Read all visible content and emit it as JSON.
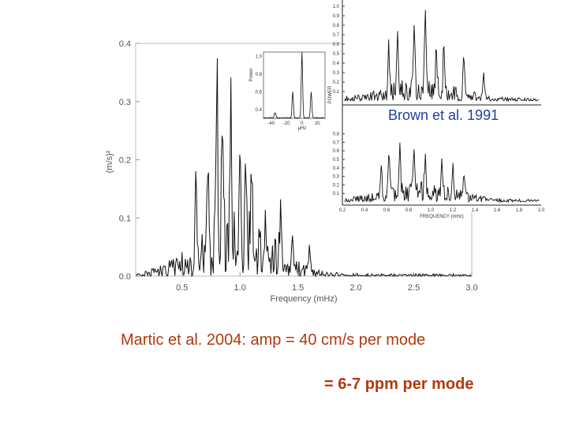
{
  "chart_data": [
    {
      "type": "line",
      "title": "",
      "xlabel": "Frequency (mHz)",
      "ylabel": "(m/s)²",
      "xlim": [
        0.1,
        3.0
      ],
      "ylim": [
        0.0,
        0.4
      ],
      "xticks": [
        "0.5",
        "1.0",
        "1.5",
        "2.0",
        "2.5",
        "3.0"
      ],
      "yticks": [
        "0.0",
        "0.1",
        "0.2",
        "0.3",
        "0.4"
      ],
      "peaks": {
        "x": [
          0.62,
          0.72,
          0.8,
          0.85,
          0.92,
          1.0,
          1.05,
          1.1,
          1.22,
          1.35,
          1.45,
          1.6
        ],
        "y": [
          0.14,
          0.24,
          0.38,
          0.3,
          0.24,
          0.2,
          0.16,
          0.17,
          0.11,
          0.09,
          0.06,
          0.05
        ]
      },
      "inset": {
        "ylabel": "Power",
        "xticks": [
          "-40",
          "-20",
          "0",
          "20"
        ],
        "yticks": [
          "0.4",
          "0.6",
          "0.8",
          "1.0"
        ],
        "xlabel": "μHz"
      }
    },
    {
      "type": "line",
      "label": "Brown et al. 1991",
      "xlabel": "FREQUENCY (mHz)",
      "ylabel": "POWER",
      "panels": [
        {
          "yticks": [
            "0.1",
            "0.2",
            "0.3",
            "0.4",
            "0.5",
            "0.6",
            "0.7",
            "0.8",
            "0.9",
            "1.0"
          ],
          "peaks": {
            "x": [
              0.62,
              0.7,
              0.85,
              0.95,
              1.05,
              1.12,
              1.3,
              1.48
            ],
            "y": [
              0.55,
              0.7,
              0.95,
              0.9,
              0.55,
              0.6,
              0.45,
              0.3
            ]
          }
        },
        {
          "yticks": [
            "0.1",
            "0.2",
            "0.3",
            "0.4",
            "0.5",
            "0.6",
            "0.7",
            "0.8"
          ],
          "xticks": [
            "0.2",
            "0.4",
            "0.6",
            "0.8",
            "1.0",
            "1.2",
            "1.4",
            "1.6",
            "1.8",
            "2.0"
          ],
          "peaks": {
            "x": [
              0.55,
              0.62,
              0.72,
              0.85,
              0.95,
              1.1,
              1.2,
              1.3
            ],
            "y": [
              0.45,
              0.65,
              0.7,
              0.6,
              0.55,
              0.5,
              0.4,
              0.35
            ]
          }
        }
      ]
    }
  ],
  "captions": {
    "line1": "Martic et al. 2004:   amp = 40 cm/s per mode",
    "line2": "=   6-7 ppm per mode"
  }
}
